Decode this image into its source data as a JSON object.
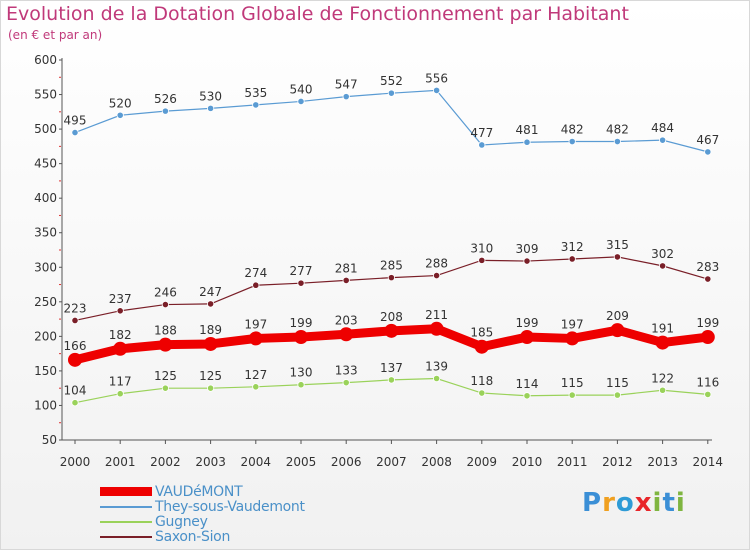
{
  "header": {
    "title": "Evolution de la Dotation Globale de Fonctionnement par Habitant",
    "subtitle": "(en € et par an)"
  },
  "logo": {
    "text": "Proxiti",
    "letters": [
      "P",
      "r",
      "o",
      "x",
      "i",
      "t",
      "i"
    ],
    "colors": [
      "#3b8fd6",
      "#f0a020",
      "#2e9bd6",
      "#e8262a",
      "#7fb540",
      "#3b8fd6",
      "#7fb540"
    ]
  },
  "chart_data": {
    "type": "line",
    "title": "Evolution de la Dotation Globale de Fonctionnement par Habitant",
    "subtitle": "(en € et par an)",
    "xlabel": "",
    "ylabel": "",
    "ylim": [
      50,
      600
    ],
    "yticks": [
      50,
      100,
      150,
      200,
      250,
      300,
      350,
      400,
      450,
      500,
      550,
      600
    ],
    "grid": false,
    "legend_position": "bottom-left",
    "x": [
      "2000",
      "2001",
      "2002",
      "2003",
      "2004",
      "2005",
      "2006",
      "2007",
      "2008",
      "2009",
      "2010",
      "2011",
      "2012",
      "2013",
      "2014"
    ],
    "series": [
      {
        "name": "Saxon-Sion",
        "color": "#7a1f28",
        "thick": false,
        "values": [
          223,
          237,
          246,
          247,
          274,
          277,
          281,
          285,
          288,
          310,
          309,
          312,
          315,
          302,
          283
        ]
      },
      {
        "name": "Gugney",
        "color": "#9ad25a",
        "thick": false,
        "values": [
          104,
          117,
          125,
          125,
          127,
          130,
          133,
          137,
          139,
          118,
          114,
          115,
          115,
          122,
          116
        ]
      },
      {
        "name": "They-sous-Vaudemont",
        "color": "#5a9bd3",
        "thick": false,
        "values": [
          495,
          520,
          526,
          530,
          535,
          540,
          547,
          552,
          556,
          477,
          481,
          482,
          482,
          484,
          467
        ]
      },
      {
        "name": "VAUDéMONT",
        "color": "#ee0000",
        "thick": true,
        "values": [
          166,
          182,
          188,
          189,
          197,
          199,
          203,
          208,
          211,
          185,
          199,
          197,
          209,
          191,
          199
        ]
      }
    ],
    "legend_order": [
      "VAUDéMONT",
      "They-sous-Vaudemont",
      "Gugney",
      "Saxon-Sion"
    ]
  }
}
